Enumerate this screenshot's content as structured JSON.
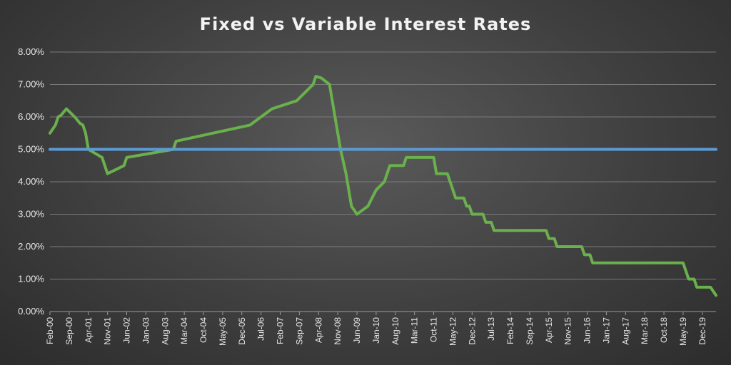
{
  "colors": {
    "variable": "#6ab04c",
    "fixed": "#5b9bd5"
  },
  "chart_data": {
    "type": "line",
    "title": "Fixed vs Variable Interest Rates",
    "xlabel": "",
    "ylabel": "",
    "ylim": [
      0,
      0.08
    ],
    "y_ticks": [
      "0.00%",
      "1.00%",
      "2.00%",
      "3.00%",
      "4.00%",
      "5.00%",
      "6.00%",
      "7.00%",
      "8.00%"
    ],
    "x_ticks": [
      "Feb-00",
      "Sep-00",
      "Apr-01",
      "Nov-01",
      "Jun-02",
      "Jan-03",
      "Aug-03",
      "Mar-04",
      "Oct-04",
      "May-05",
      "Dec-05",
      "Jul-06",
      "Feb-07",
      "Sep-07",
      "Apr-08",
      "Nov-08",
      "Jun-09",
      "Jan-10",
      "Aug-10",
      "Mar-11",
      "Oct-11",
      "May-12",
      "Dec-12",
      "Jul-13",
      "Feb-14",
      "Sep-14",
      "Apr-15",
      "Nov-15",
      "Jun-16",
      "Jan-17",
      "Aug-17",
      "Mar-18",
      "Oct-18",
      "May-19",
      "Dec-19"
    ],
    "x_range": [
      "Feb-00",
      "May-20"
    ],
    "grid": true,
    "legend": "none",
    "series": [
      {
        "color": "#6ab04c",
        "points": [
          [
            "Feb-00",
            0.055
          ],
          [
            "Apr-00",
            0.0575
          ],
          [
            "May-00",
            0.06
          ],
          [
            "Jun-00",
            0.0605
          ],
          [
            "Aug-00",
            0.0625
          ],
          [
            "Nov-00",
            0.06
          ],
          [
            "Jan-01",
            0.058
          ],
          [
            "Feb-01",
            0.0575
          ],
          [
            "Mar-01",
            0.055
          ],
          [
            "Apr-01",
            0.05
          ],
          [
            "Jul-01",
            0.0485
          ],
          [
            "Sep-01",
            0.0475
          ],
          [
            "Oct-01",
            0.045
          ],
          [
            "Nov-01",
            0.0425
          ],
          [
            "May-02",
            0.045
          ],
          [
            "Jun-02",
            0.0475
          ],
          [
            "Sep-03",
            0.0497
          ],
          [
            "Nov-03",
            0.05
          ],
          [
            "Dec-03",
            0.0525
          ],
          [
            "Mar-06",
            0.0575
          ],
          [
            "Nov-06",
            0.0625
          ],
          [
            "Aug-07",
            0.065
          ],
          [
            "Nov-07",
            0.0675
          ],
          [
            "Feb-08",
            0.07
          ],
          [
            "Mar-08",
            0.0725
          ],
          [
            "May-08",
            0.072
          ],
          [
            "Aug-08",
            0.07
          ],
          [
            "Oct-08",
            0.06
          ],
          [
            "Dec-08",
            0.05
          ],
          [
            "Feb-09",
            0.0425
          ],
          [
            "Apr-09",
            0.0325
          ],
          [
            "Jun-09",
            0.03
          ],
          [
            "Oct-09",
            0.0325
          ],
          [
            "Jan-10",
            0.0375
          ],
          [
            "Apr-10",
            0.04
          ],
          [
            "Jun-10",
            0.045
          ],
          [
            "Nov-10",
            0.045
          ],
          [
            "Dec-10",
            0.0475
          ],
          [
            "Oct-11",
            0.0475
          ],
          [
            "Nov-11",
            0.0425
          ],
          [
            "Mar-12",
            0.0425
          ],
          [
            "May-12",
            0.0375
          ],
          [
            "Jun-12",
            0.035
          ],
          [
            "Sep-12",
            0.035
          ],
          [
            "Oct-12",
            0.0325
          ],
          [
            "Nov-12",
            0.0325
          ],
          [
            "Dec-12",
            0.03
          ],
          [
            "Apr-13",
            0.03
          ],
          [
            "May-13",
            0.0275
          ],
          [
            "Jul-13",
            0.0275
          ],
          [
            "Aug-13",
            0.025
          ],
          [
            "Mar-15",
            0.025
          ],
          [
            "Apr-15",
            0.0225
          ],
          [
            "Jun-15",
            0.0225
          ],
          [
            "Jul-15",
            0.02
          ],
          [
            "Apr-16",
            0.02
          ],
          [
            "May-16",
            0.0175
          ],
          [
            "Jul-16",
            0.0175
          ],
          [
            "Aug-16",
            0.015
          ],
          [
            "May-19",
            0.015
          ],
          [
            "Jun-19",
            0.0125
          ],
          [
            "Jul-19",
            0.01
          ],
          [
            "Sep-19",
            0.01
          ],
          [
            "Oct-19",
            0.0075
          ],
          [
            "Mar-20",
            0.0075
          ],
          [
            "May-20",
            0.005
          ]
        ]
      },
      {
        "color": "#5b9bd5",
        "points": [
          [
            "Feb-00",
            0.05
          ],
          [
            "May-20",
            0.05
          ]
        ]
      }
    ]
  }
}
